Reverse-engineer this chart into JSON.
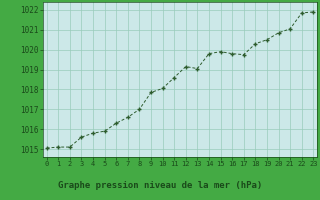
{
  "x": [
    0,
    1,
    2,
    3,
    4,
    5,
    6,
    7,
    8,
    9,
    10,
    11,
    12,
    13,
    14,
    15,
    16,
    17,
    18,
    19,
    20,
    21,
    22,
    23
  ],
  "y": [
    1015.05,
    1015.1,
    1015.1,
    1015.6,
    1015.8,
    1015.9,
    1016.3,
    1016.6,
    1017.0,
    1017.85,
    1018.05,
    1018.6,
    1019.15,
    1019.05,
    1019.8,
    1019.9,
    1019.8,
    1019.75,
    1020.3,
    1020.5,
    1020.85,
    1021.05,
    1021.85,
    1021.9
  ],
  "xlim": [
    -0.3,
    23.3
  ],
  "ylim": [
    1014.6,
    1022.4
  ],
  "yticks": [
    1015,
    1016,
    1017,
    1018,
    1019,
    1020,
    1021,
    1022
  ],
  "xticks": [
    0,
    1,
    2,
    3,
    4,
    5,
    6,
    7,
    8,
    9,
    10,
    11,
    12,
    13,
    14,
    15,
    16,
    17,
    18,
    19,
    20,
    21,
    22,
    23
  ],
  "line_color": "#2d5c2d",
  "marker_color": "#2d5c2d",
  "plot_bg": "#cce8e8",
  "grid_color": "#99ccbb",
  "label_color": "#1a4a1a",
  "footer_bg": "#44aa44",
  "xlabel": "Graphe pression niveau de la mer (hPa)"
}
